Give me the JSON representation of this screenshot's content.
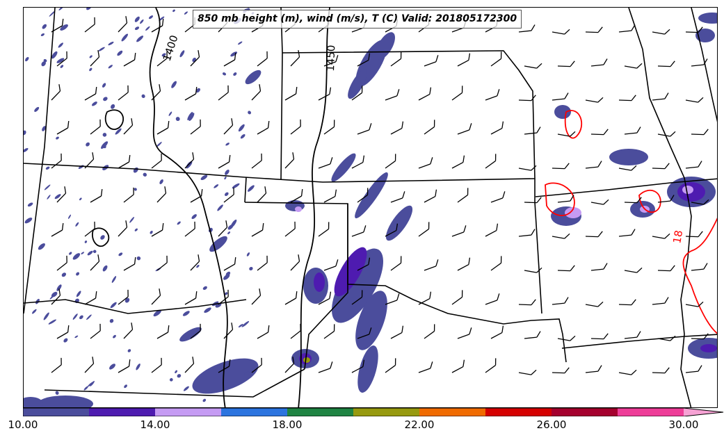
{
  "title": "850 mb height (m), wind (m/s), T (C) Valid: 201805172300",
  "height_contours": [
    "1400",
    "1450"
  ],
  "temperature_contours": [
    "18"
  ],
  "colorbar": {
    "ticks": [
      "10.00",
      "14.00",
      "18.00",
      "22.00",
      "26.00",
      "30.00"
    ],
    "min": 10,
    "max": 32,
    "extend": "max",
    "colors": [
      "#4b4d9c",
      "#4e1bb0",
      "#c59bf3",
      "#2c74df",
      "#1f8443",
      "#979a10",
      "#f06b00",
      "#d50000",
      "#a5002e",
      "#ee3d98"
    ],
    "extend_color": "#f6a2d4"
  },
  "colors": {
    "fill_base": "#4b4d9c",
    "height_contour": "#000000",
    "temperature_contour": "#ff0000",
    "state_borders": "#000000"
  }
}
